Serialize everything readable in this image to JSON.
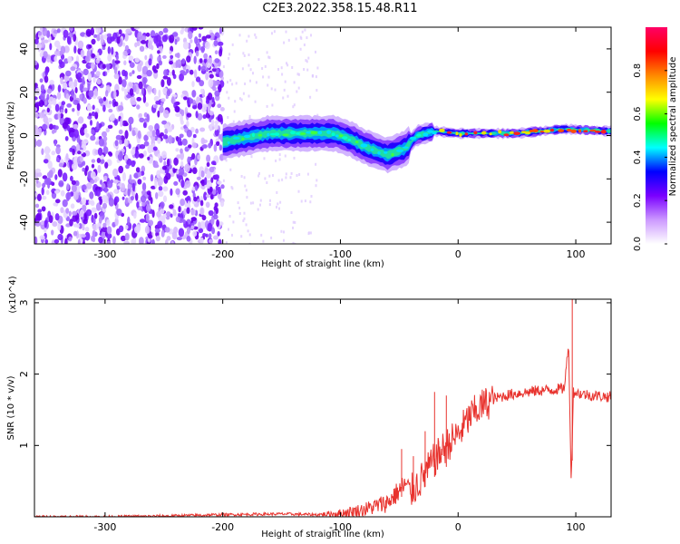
{
  "title": "C2E3.2022.358.15.48.R11",
  "chart_data": [
    {
      "type": "heatmap",
      "xlabel": "Height of straight line (km)",
      "ylabel": "Frequency (Hz)",
      "xlim": [
        -360,
        130
      ],
      "ylim": [
        -50,
        50
      ],
      "xticks": [
        -300,
        -200,
        -100,
        0,
        100
      ],
      "yticks": [
        -40,
        -20,
        0,
        20,
        40
      ],
      "colorbar": {
        "label": "Normalized spectral amplitude",
        "range": [
          0.0,
          1.0
        ],
        "ticks": [
          0.0,
          0.2,
          0.4,
          0.6,
          0.8
        ],
        "colors": [
          "#ffffff",
          "#cc99ff",
          "#7a00ff",
          "#0000ff",
          "#00ffff",
          "#00ff00",
          "#ffff00",
          "#ff8800",
          "#ff0000",
          "#ff0066"
        ]
      },
      "noise_region_x": [
        -360,
        -200
      ],
      "signal_track": [
        {
          "x": -200,
          "y": -3
        },
        {
          "x": -160,
          "y": 1
        },
        {
          "x": -130,
          "y": 1
        },
        {
          "x": -105,
          "y": 1
        },
        {
          "x": -90,
          "y": -2
        },
        {
          "x": -80,
          "y": -5
        },
        {
          "x": -60,
          "y": -9
        },
        {
          "x": -45,
          "y": -6
        },
        {
          "x": -35,
          "y": 0
        },
        {
          "x": -20,
          "y": 2
        },
        {
          "x": 0,
          "y": 1
        },
        {
          "x": 50,
          "y": 1
        },
        {
          "x": 90,
          "y": 3
        },
        {
          "x": 130,
          "y": 2
        }
      ]
    },
    {
      "type": "line",
      "xlabel": "Height of straight line (km)",
      "ylabel": "SNR (10 * v/v)",
      "yscale_label": "(x10^4)",
      "xlim": [
        -360,
        130
      ],
      "ylim": [
        0,
        3.05
      ],
      "xticks": [
        -300,
        -200,
        -100,
        0,
        100
      ],
      "yticks": [
        1,
        2,
        3
      ],
      "color": "#e8332e",
      "series": [
        {
          "x": [
            -360,
            -300,
            -250,
            -200,
            -150,
            -120,
            -100,
            -80,
            -60,
            -45,
            -40,
            -30,
            -20,
            -10,
            0,
            10,
            20,
            30,
            40,
            50,
            60,
            70,
            80,
            90,
            94,
            96,
            98,
            105,
            115,
            130
          ],
          "values": [
            0.0,
            0.0,
            0.01,
            0.03,
            0.04,
            0.03,
            0.05,
            0.1,
            0.2,
            0.45,
            0.35,
            0.55,
            0.8,
            1.0,
            1.15,
            1.4,
            1.55,
            1.65,
            1.7,
            1.73,
            1.75,
            1.77,
            1.78,
            1.8,
            2.4,
            0.5,
            1.75,
            1.72,
            1.7,
            1.68
          ]
        }
      ],
      "spikes": [
        {
          "x": -48,
          "y": 0.95
        },
        {
          "x": -38,
          "y": 0.85
        },
        {
          "x": -28,
          "y": 1.2
        },
        {
          "x": -20,
          "y": 1.75
        },
        {
          "x": -10,
          "y": 1.7
        },
        {
          "x": 97,
          "y": 3.05
        }
      ]
    }
  ]
}
